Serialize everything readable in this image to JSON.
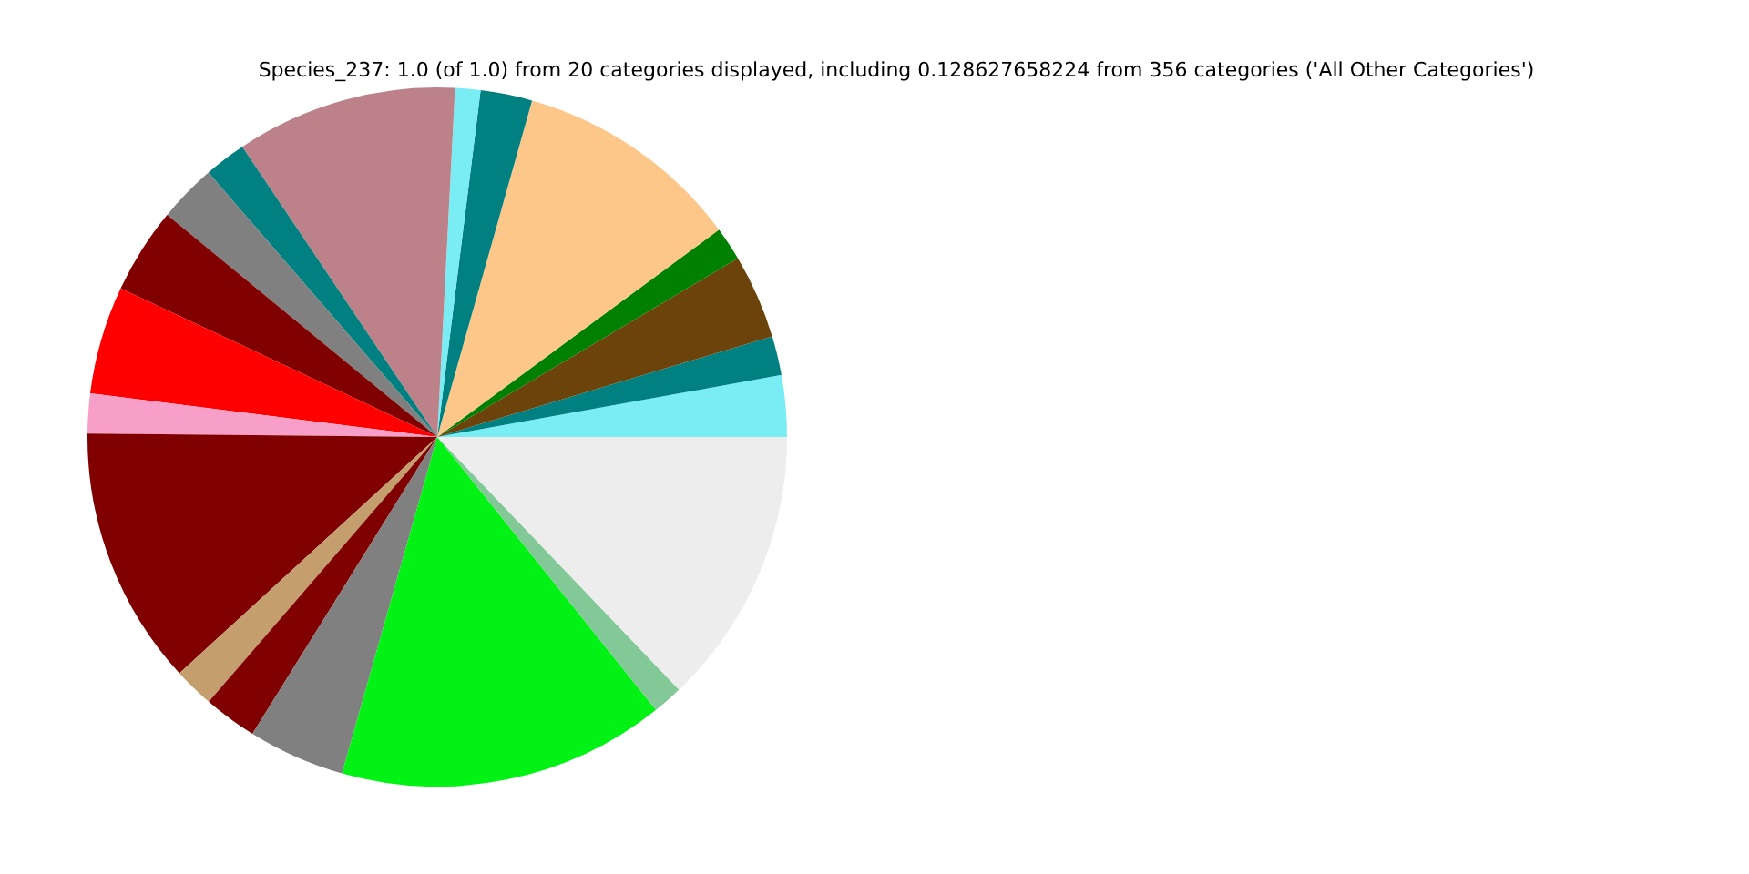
{
  "chart_data": {
    "type": "pie",
    "title": "Species_237: 1.0 (of 1.0) from 20 categories displayed, including 0.128627658224 from 356 categories ('All Other Categories')",
    "categories": [
      null,
      null,
      null,
      null,
      null,
      null,
      null,
      null,
      null,
      null,
      null,
      null,
      null,
      null,
      null,
      null,
      null,
      null,
      null,
      null
    ],
    "values": [
      2.84,
      1.81,
      3.89,
      1.56,
      10.53,
      2.39,
      1.17,
      10.22,
      1.94,
      2.69,
      3.97,
      5.0,
      1.83,
      11.97,
      1.86,
      2.47,
      4.47,
      15.14,
      1.39,
      12.86
    ],
    "colors": [
      "#7aecf4",
      "#008080",
      "#6b430b",
      "#008000",
      "#fdc78a",
      "#008080",
      "#7aecf4",
      "#bc8189",
      "#008080",
      "#808080",
      "#800000",
      "#ff0000",
      "#f79fc8",
      "#800000",
      "#c49f6d",
      "#800000",
      "#808080",
      "#03f216",
      "#82c997",
      "#ededed"
    ],
    "legend": false
  }
}
